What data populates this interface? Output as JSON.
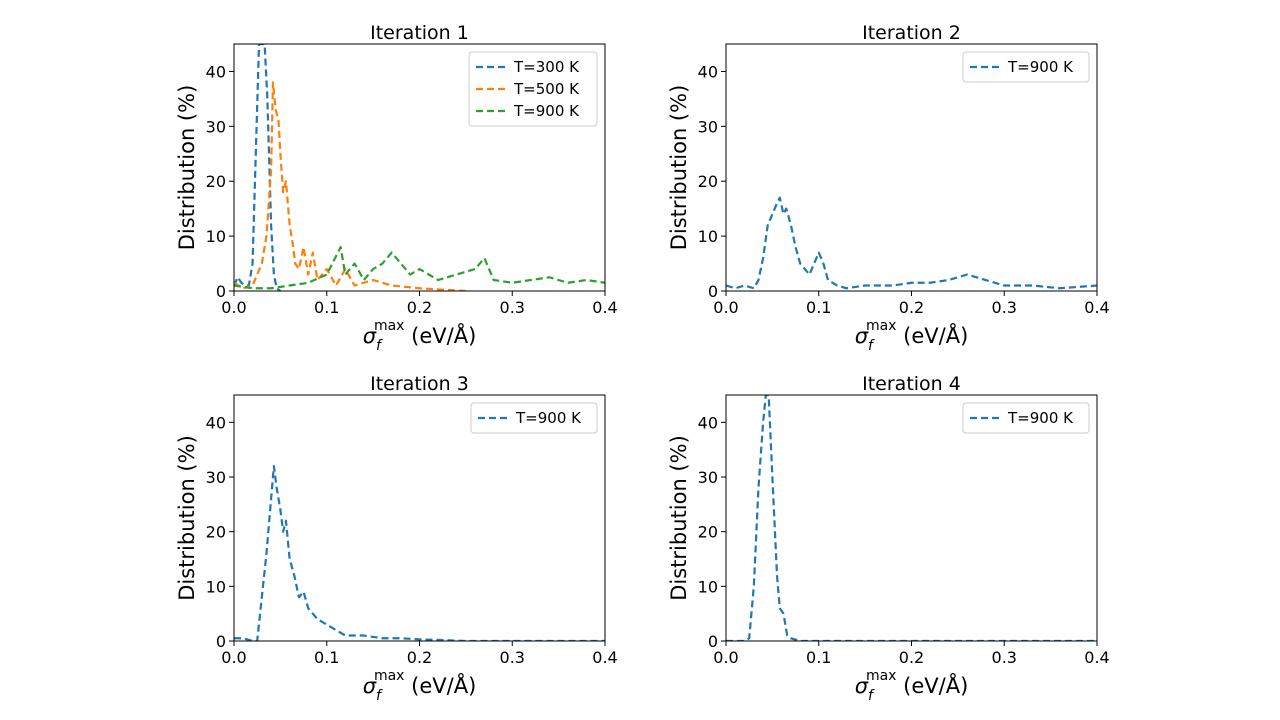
{
  "chart_data": [
    {
      "type": "line",
      "title": "Iteration 1",
      "xlabel": "σ_f^max (eV/Å)",
      "xlabel_parts": {
        "symbol": "σ",
        "sub": "f",
        "sup": "max",
        "unit": "(eV/Å)"
      },
      "ylabel": "Distribution (%)",
      "xlim": [
        0,
        0.4
      ],
      "ylim": [
        0,
        45
      ],
      "xticks": [
        0,
        0.1,
        0.2,
        0.3,
        0.4
      ],
      "xtick_labels": [
        "0.0",
        "0.1",
        "0.2",
        "0.3",
        "0.4"
      ],
      "yticks": [
        0,
        10,
        20,
        30,
        40
      ],
      "ytick_labels": [
        "0",
        "10",
        "20",
        "30",
        "40"
      ],
      "legend_position": "top-right",
      "series": [
        {
          "name": "T=300 K",
          "color": "#1f77b4",
          "x": [
            0,
            0.004,
            0.008,
            0.012,
            0.016,
            0.02,
            0.024,
            0.027,
            0.03,
            0.033,
            0.036,
            0.04,
            0.043,
            0.046,
            0.05
          ],
          "y": [
            1,
            2.5,
            1.5,
            1,
            1,
            5,
            28,
            45,
            45,
            45,
            35,
            12,
            3,
            0.5,
            0
          ]
        },
        {
          "name": "T=500 K",
          "color": "#ff7f0e",
          "x": [
            0,
            0.01,
            0.02,
            0.03,
            0.035,
            0.04,
            0.042,
            0.045,
            0.048,
            0.05,
            0.053,
            0.056,
            0.06,
            0.063,
            0.066,
            0.07,
            0.075,
            0.08,
            0.085,
            0.09,
            0.1,
            0.11,
            0.12,
            0.13,
            0.15,
            0.17,
            0.2,
            0.25
          ],
          "y": [
            1.5,
            0.5,
            1,
            5,
            10,
            22,
            38,
            33,
            31,
            25,
            18,
            20,
            12,
            9,
            5,
            4,
            8,
            3,
            7,
            2,
            4,
            1,
            4,
            1,
            2,
            1,
            0.5,
            0
          ]
        },
        {
          "name": "T=900 K",
          "color": "#2ca02c",
          "x": [
            0,
            0.02,
            0.04,
            0.06,
            0.08,
            0.1,
            0.115,
            0.12,
            0.13,
            0.14,
            0.15,
            0.16,
            0.17,
            0.18,
            0.19,
            0.2,
            0.22,
            0.24,
            0.26,
            0.27,
            0.28,
            0.3,
            0.32,
            0.34,
            0.36,
            0.38,
            0.4
          ],
          "y": [
            1,
            0.5,
            0.5,
            1,
            1.5,
            3,
            8,
            3,
            5,
            2,
            4,
            5,
            7,
            5,
            3,
            4,
            2,
            3,
            4,
            6,
            2,
            1.5,
            2,
            2.5,
            1.5,
            2,
            1.5
          ]
        }
      ]
    },
    {
      "type": "line",
      "title": "Iteration 2",
      "xlabel": "σ_f^max (eV/Å)",
      "xlabel_parts": {
        "symbol": "σ",
        "sub": "f",
        "sup": "max",
        "unit": "(eV/Å)"
      },
      "ylabel": "Distribution (%)",
      "xlim": [
        0,
        0.4
      ],
      "ylim": [
        0,
        45
      ],
      "xticks": [
        0,
        0.1,
        0.2,
        0.3,
        0.4
      ],
      "xtick_labels": [
        "0.0",
        "0.1",
        "0.2",
        "0.3",
        "0.4"
      ],
      "yticks": [
        0,
        10,
        20,
        30,
        40
      ],
      "ytick_labels": [
        "0",
        "10",
        "20",
        "30",
        "40"
      ],
      "legend_position": "top-right",
      "series": [
        {
          "name": "T=900 K",
          "color": "#1f77b4",
          "x": [
            0,
            0.01,
            0.02,
            0.03,
            0.035,
            0.04,
            0.045,
            0.05,
            0.055,
            0.058,
            0.062,
            0.065,
            0.07,
            0.075,
            0.08,
            0.085,
            0.09,
            0.095,
            0.1,
            0.105,
            0.11,
            0.12,
            0.13,
            0.15,
            0.18,
            0.2,
            0.22,
            0.24,
            0.26,
            0.28,
            0.3,
            0.33,
            0.36,
            0.4
          ],
          "y": [
            1,
            0.5,
            1,
            0.5,
            2,
            6,
            12,
            14,
            16,
            17,
            14,
            15,
            12,
            8,
            5,
            4,
            3,
            5,
            7,
            5,
            2,
            1,
            0.5,
            1,
            1,
            1.5,
            1.5,
            2,
            3,
            2,
            1,
            1,
            0.5,
            1
          ]
        }
      ]
    },
    {
      "type": "line",
      "title": "Iteration 3",
      "xlabel": "σ_f^max (eV/Å)",
      "xlabel_parts": {
        "symbol": "σ",
        "sub": "f",
        "sup": "max",
        "unit": "(eV/Å)"
      },
      "ylabel": "Distribution (%)",
      "xlim": [
        0,
        0.4
      ],
      "ylim": [
        0,
        45
      ],
      "xticks": [
        0,
        0.1,
        0.2,
        0.3,
        0.4
      ],
      "xtick_labels": [
        "0.0",
        "0.1",
        "0.2",
        "0.3",
        "0.4"
      ],
      "yticks": [
        0,
        10,
        20,
        30,
        40
      ],
      "ytick_labels": [
        "0",
        "10",
        "20",
        "30",
        "40"
      ],
      "legend_position": "top-right",
      "series": [
        {
          "name": "T=900 K",
          "color": "#1f77b4",
          "x": [
            0,
            0.01,
            0.02,
            0.025,
            0.03,
            0.035,
            0.04,
            0.043,
            0.046,
            0.05,
            0.053,
            0.056,
            0.06,
            0.065,
            0.07,
            0.075,
            0.08,
            0.09,
            0.1,
            0.11,
            0.12,
            0.14,
            0.16,
            0.18,
            0.2,
            0.22,
            0.25,
            0.3,
            0.35,
            0.4
          ],
          "y": [
            0.5,
            0.5,
            0,
            0,
            8,
            16,
            26,
            32,
            28,
            24,
            20,
            22,
            15,
            12,
            8,
            9,
            6,
            4,
            3,
            2,
            1,
            1,
            0.5,
            0.5,
            0.3,
            0.2,
            0,
            0,
            0,
            0
          ]
        }
      ]
    },
    {
      "type": "line",
      "title": "Iteration 4",
      "xlabel": "σ_f^max (eV/Å)",
      "xlabel_parts": {
        "symbol": "σ",
        "sub": "f",
        "sup": "max",
        "unit": "(eV/Å)"
      },
      "ylabel": "Distribution (%)",
      "xlim": [
        0,
        0.4
      ],
      "ylim": [
        0,
        45
      ],
      "xticks": [
        0,
        0.1,
        0.2,
        0.3,
        0.4
      ],
      "xtick_labels": [
        "0.0",
        "0.1",
        "0.2",
        "0.3",
        "0.4"
      ],
      "yticks": [
        0,
        10,
        20,
        30,
        40
      ],
      "ytick_labels": [
        "0",
        "10",
        "20",
        "30",
        "40"
      ],
      "legend_position": "top-right",
      "series": [
        {
          "name": "T=900 K",
          "color": "#1f77b4",
          "x": [
            0,
            0.01,
            0.02,
            0.025,
            0.03,
            0.035,
            0.04,
            0.043,
            0.046,
            0.05,
            0.055,
            0.058,
            0.062,
            0.066,
            0.07,
            0.08,
            0.1,
            0.15,
            0.2,
            0.3,
            0.4
          ],
          "y": [
            0,
            0,
            0,
            0.5,
            10,
            28,
            40,
            45,
            45,
            30,
            12,
            6,
            5,
            1,
            0.5,
            0,
            0,
            0,
            0,
            0,
            0
          ]
        }
      ]
    }
  ]
}
